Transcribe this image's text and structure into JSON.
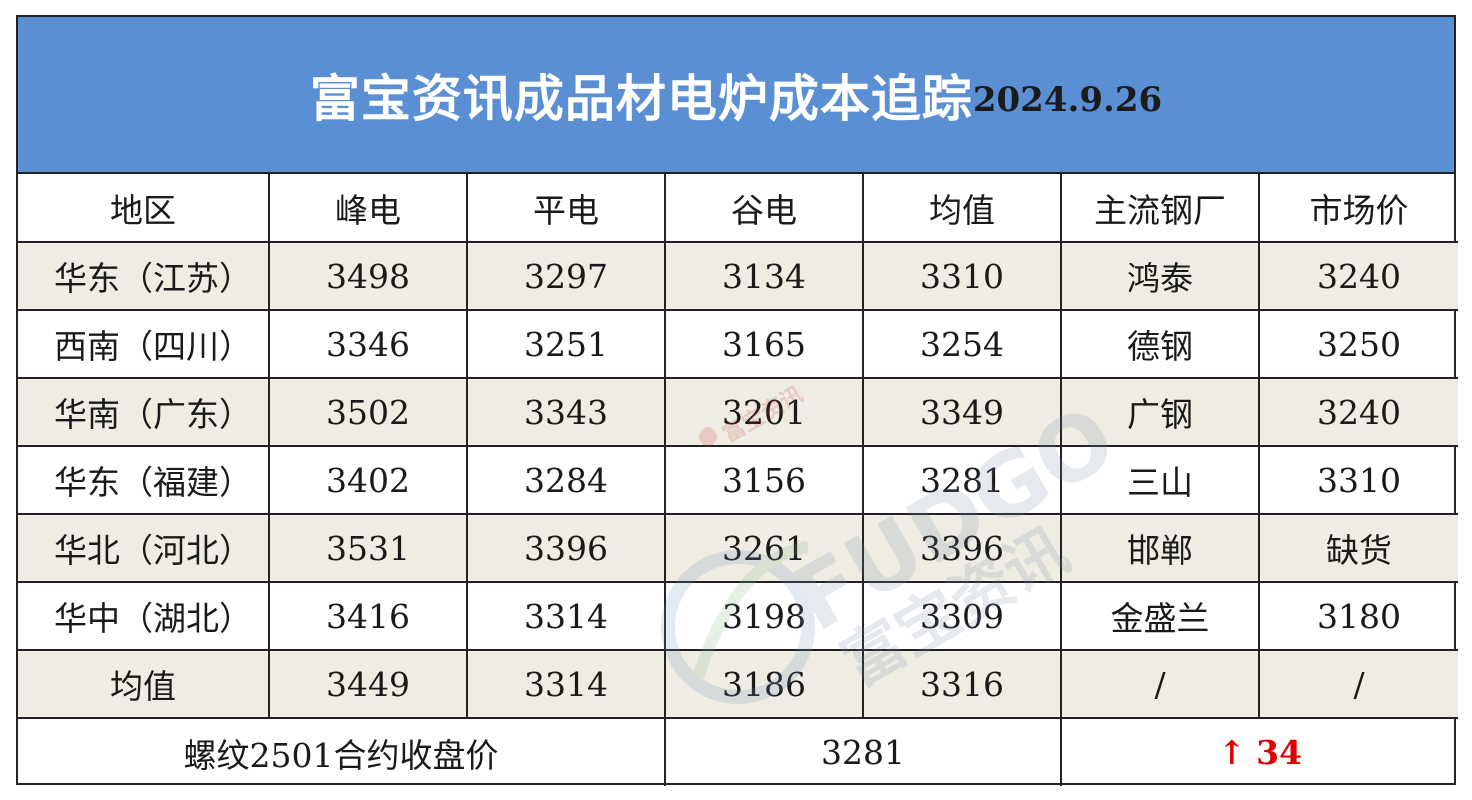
{
  "title": {
    "main": "富宝资讯成品材电炉成本追踪",
    "date": "2024.9.26"
  },
  "header": [
    "地区",
    "峰电",
    "平电",
    "谷电",
    "均值",
    "主流钢厂",
    "市场价"
  ],
  "rows": [
    {
      "region": "华东（江苏）",
      "peak": "3498",
      "flat": "3297",
      "valley": "3134",
      "avg": "3310",
      "mill": "鸿泰",
      "price": "3240"
    },
    {
      "region": "西南（四川）",
      "peak": "3346",
      "flat": "3251",
      "valley": "3165",
      "avg": "3254",
      "mill": "德钢",
      "price": "3250"
    },
    {
      "region": "华南（广东）",
      "peak": "3502",
      "flat": "3343",
      "valley": "3201",
      "avg": "3349",
      "mill": "广钢",
      "price": "3240"
    },
    {
      "region": "华东（福建）",
      "peak": "3402",
      "flat": "3284",
      "valley": "3156",
      "avg": "3281",
      "mill": "三山",
      "price": "3310"
    },
    {
      "region": "华北（河北）",
      "peak": "3531",
      "flat": "3396",
      "valley": "3261",
      "avg": "3396",
      "mill": "邯郸",
      "price": "缺货"
    },
    {
      "region": "华中（湖北）",
      "peak": "3416",
      "flat": "3314",
      "valley": "3198",
      "avg": "3309",
      "mill": "金盛兰",
      "price": "3180"
    }
  ],
  "average_row": {
    "label": "均值",
    "peak": "3449",
    "flat": "3314",
    "valley": "3186",
    "avg": "3316",
    "mill": "/",
    "price": "/"
  },
  "futures_row": {
    "label": "螺纹2501合约收盘价",
    "value": "3281",
    "arrow": "↑",
    "change": "34"
  },
  "watermark": {
    "brand_en": "FUDGO",
    "brand_cn": "富宝资讯",
    "small_cn": "富宝资讯"
  },
  "colors": {
    "title_bg": "#5b8fd4",
    "band_bg": "#eeece3",
    "change": "#e00000"
  }
}
